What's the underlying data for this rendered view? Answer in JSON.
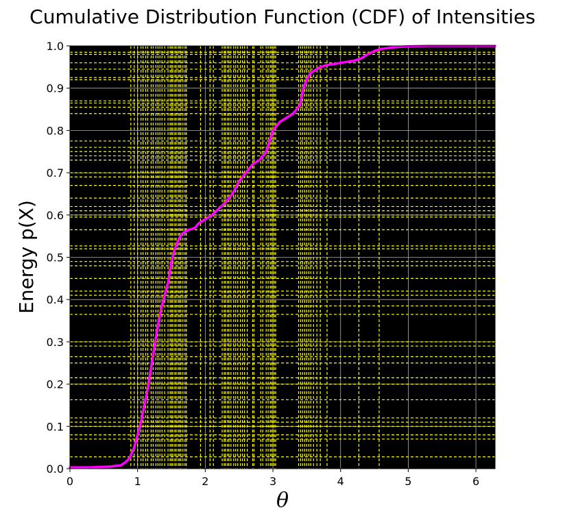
{
  "chart_data": {
    "type": "line",
    "title": "Cumulative Distribution Function (CDF) of Intensities",
    "xlabel": "θ",
    "ylabel": "Energy p(X)",
    "xlim": [
      0,
      6.283
    ],
    "ylim": [
      0,
      1.0
    ],
    "xticks": [
      0,
      1,
      2,
      3,
      4,
      5,
      6
    ],
    "yticks": [
      0.0,
      0.1,
      0.2,
      0.3,
      0.4,
      0.5,
      0.6,
      0.7,
      0.8,
      0.9,
      1.0
    ],
    "grid": true,
    "background_color": "#000000",
    "grid_color": "#b0b0b0",
    "series": [
      {
        "color": "#ff00ff",
        "x": [
          0,
          0.3,
          0.6,
          0.75,
          0.82,
          0.88,
          0.95,
          1.0,
          1.05,
          1.1,
          1.15,
          1.2,
          1.25,
          1.3,
          1.35,
          1.4,
          1.45,
          1.5,
          1.55,
          1.6,
          1.65,
          1.7,
          1.75,
          1.8,
          1.85,
          1.9,
          2.0,
          2.1,
          2.2,
          2.3,
          2.4,
          2.45,
          2.5,
          2.55,
          2.6,
          2.7,
          2.8,
          2.9,
          3.0,
          3.05,
          3.1,
          3.2,
          3.3,
          3.4,
          3.45,
          3.5,
          3.55,
          3.6,
          3.7,
          3.8,
          3.9,
          4.0,
          4.2,
          4.3,
          4.4,
          4.5,
          4.6,
          4.8,
          5.0,
          5.3,
          6.283
        ],
        "y": [
          0.003,
          0.003,
          0.005,
          0.008,
          0.015,
          0.025,
          0.05,
          0.08,
          0.11,
          0.15,
          0.19,
          0.24,
          0.29,
          0.34,
          0.38,
          0.41,
          0.44,
          0.49,
          0.52,
          0.54,
          0.555,
          0.56,
          0.565,
          0.567,
          0.57,
          0.58,
          0.59,
          0.6,
          0.615,
          0.63,
          0.65,
          0.665,
          0.68,
          0.69,
          0.7,
          0.72,
          0.73,
          0.75,
          0.8,
          0.81,
          0.82,
          0.83,
          0.84,
          0.86,
          0.9,
          0.92,
          0.935,
          0.94,
          0.95,
          0.955,
          0.957,
          0.96,
          0.965,
          0.97,
          0.98,
          0.988,
          0.993,
          0.997,
          0.999,
          1.0,
          1.0
        ]
      }
    ],
    "vertical_markers": {
      "color": "#ffff00",
      "style": "dashed",
      "x": [
        0.9,
        0.95,
        1.0,
        1.05,
        1.08,
        1.12,
        1.15,
        1.2,
        1.23,
        1.27,
        1.3,
        1.33,
        1.36,
        1.4,
        1.45,
        1.48,
        1.5,
        1.52,
        1.55,
        1.57,
        1.6,
        1.62,
        1.64,
        1.67,
        1.7,
        1.72,
        1.93,
        2.07,
        2.12,
        2.25,
        2.28,
        2.3,
        2.33,
        2.35,
        2.38,
        2.42,
        2.45,
        2.48,
        2.52,
        2.55,
        2.58,
        2.62,
        2.7,
        2.72,
        2.82,
        2.85,
        2.9,
        2.93,
        2.96,
        2.98,
        3.0,
        3.02,
        3.04,
        3.38,
        3.41,
        3.44,
        3.47,
        3.5,
        3.53,
        3.56,
        3.6,
        3.65,
        3.7,
        3.8,
        4.27,
        4.57
      ]
    },
    "horizontal_markers": {
      "color": "#ffff00",
      "style": "dashed",
      "y": [
        0.028,
        0.07,
        0.08,
        0.1,
        0.11,
        0.12,
        0.163,
        0.2,
        0.215,
        0.25,
        0.265,
        0.29,
        0.3,
        0.365,
        0.385,
        0.41,
        0.42,
        0.45,
        0.48,
        0.49,
        0.52,
        0.527,
        0.565,
        0.595,
        0.6,
        0.61,
        0.62,
        0.64,
        0.67,
        0.69,
        0.7,
        0.73,
        0.74,
        0.75,
        0.76,
        0.775,
        0.84,
        0.855,
        0.865,
        0.87,
        0.92,
        0.925,
        0.945,
        0.96,
        0.98,
        0.985
      ]
    }
  }
}
